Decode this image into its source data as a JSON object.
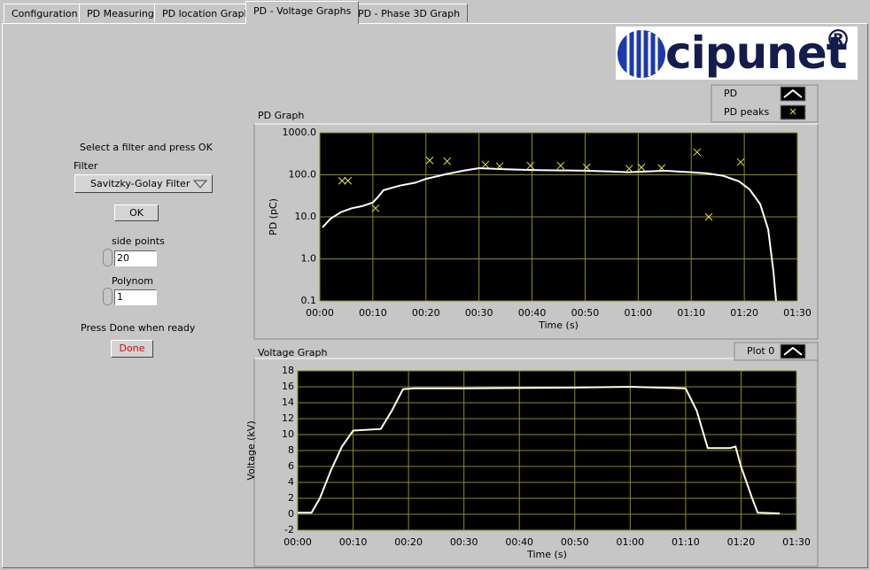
{
  "tabs": [
    "Configuration",
    "PD Measuring",
    "PD location Graph",
    "PD - Voltage Graphs",
    "PD - Phase 3D Graph"
  ],
  "active_tab": 3,
  "logo": {
    "text": "cipunet",
    "mark": "®"
  },
  "controls": {
    "instruction": "Select a filter and press OK",
    "filter_label": "Filter",
    "filter_value": "Savitzky-Golay Filter",
    "ok_button": "OK",
    "side_points_label": "side points",
    "side_points_value": "20",
    "polynom_label": "Polynom",
    "polynom_value": "1",
    "done_prompt": "Press Done when ready",
    "done_button": "Done"
  },
  "chart_data": [
    {
      "type": "line",
      "title": "PD Graph",
      "xlabel": "Time (s)",
      "ylabel": "PD (pC)",
      "yscale": "log",
      "xlim": [
        0,
        90
      ],
      "ylim": [
        0.1,
        1000
      ],
      "xticks": [
        {
          "value": 0,
          "label": "00:00"
        },
        {
          "value": 10,
          "label": "00:10"
        },
        {
          "value": 20,
          "label": "00:20"
        },
        {
          "value": 30,
          "label": "00:30"
        },
        {
          "value": 40,
          "label": "00:40"
        },
        {
          "value": 50,
          "label": "00:50"
        },
        {
          "value": 60,
          "label": "01:00"
        },
        {
          "value": 70,
          "label": "01:10"
        },
        {
          "value": 80,
          "label": "01:20"
        },
        {
          "value": 90,
          "label": "01:30"
        }
      ],
      "yticks": [
        0.1,
        {
          "value": 1,
          "label": "1.0"
        },
        {
          "value": 10,
          "label": "10.0"
        },
        {
          "value": 100,
          "label": "100.0"
        },
        {
          "value": 1000,
          "label": "1000.0"
        }
      ],
      "grid": true,
      "background": "#000000",
      "grid_color": "#8c8c24",
      "series": [
        {
          "name": "PD",
          "color": "#ffffff",
          "x": [
            0.5,
            2,
            4,
            6,
            8,
            10,
            11,
            12,
            15,
            18,
            20,
            24,
            27,
            30,
            35,
            40,
            50,
            55,
            58,
            60,
            65,
            70,
            73,
            76,
            79,
            81,
            83,
            84.5,
            85.5,
            86
          ],
          "values": [
            5.6,
            9,
            13,
            16,
            18,
            22,
            30,
            43,
            55,
            65,
            80,
            105,
            125,
            144,
            135,
            130,
            125,
            120,
            115,
            118,
            125,
            115,
            108,
            95,
            70,
            45,
            20,
            5,
            0.5,
            0.1
          ]
        },
        {
          "name": "PD peaks",
          "color": "#e6e64a",
          "marker": "x",
          "x": [
            4.2,
            5.3,
            10.5,
            20.7,
            24,
            31.2,
            33.9,
            39.7,
            45.4,
            50.3,
            58.3,
            60.6,
            64.4,
            71.1,
            73.3,
            79.3
          ],
          "values": [
            72,
            72,
            16,
            220,
            210,
            175,
            160,
            165,
            165,
            150,
            140,
            150,
            145,
            345,
            10,
            200
          ]
        }
      ]
    },
    {
      "type": "line",
      "title": "Voltage Graph",
      "xlabel": "Time (s)",
      "ylabel": "Voltage (kV)",
      "xlim": [
        0,
        90
      ],
      "ylim": [
        -2,
        18
      ],
      "xticks": [
        {
          "value": 0,
          "label": "00:00"
        },
        {
          "value": 10,
          "label": "00:10"
        },
        {
          "value": 20,
          "label": "00:20"
        },
        {
          "value": 30,
          "label": "00:30"
        },
        {
          "value": 40,
          "label": "00:40"
        },
        {
          "value": 50,
          "label": "00:50"
        },
        {
          "value": 60,
          "label": "01:00"
        },
        {
          "value": 70,
          "label": "01:10"
        },
        {
          "value": 80,
          "label": "01:20"
        },
        {
          "value": 90,
          "label": "01:30"
        }
      ],
      "yticks": [
        -2,
        0,
        2,
        4,
        6,
        8,
        10,
        12,
        14,
        16,
        18
      ],
      "grid": true,
      "background": "#000000",
      "grid_color": "#8c8c24",
      "series": [
        {
          "name": "Plot 0",
          "color": "#ffffee",
          "x": [
            0,
            2.5,
            4,
            6,
            8,
            10,
            15,
            17,
            19,
            21,
            30,
            50,
            60,
            70,
            72,
            74,
            78,
            79,
            80,
            82,
            83,
            87
          ],
          "values": [
            0.2,
            0.2,
            2,
            5.5,
            8.5,
            10.5,
            10.7,
            13,
            15.7,
            15.8,
            15.8,
            15.9,
            16,
            15.8,
            13,
            8.3,
            8.3,
            8.5,
            6,
            2,
            0.2,
            0.1
          ]
        }
      ]
    }
  ]
}
